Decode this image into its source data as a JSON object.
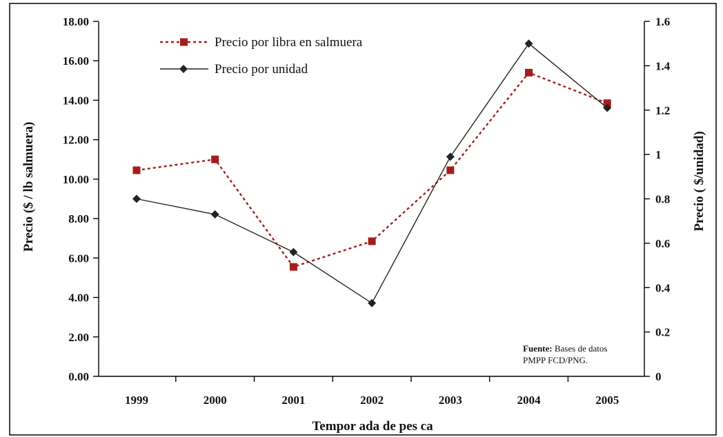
{
  "colors": {
    "series_brine": "#a51d1d",
    "series_unit": "#222222",
    "frame": "#000000"
  },
  "chart_data": {
    "type": "line",
    "categories": [
      "1999",
      "2000",
      "2001",
      "2002",
      "2003",
      "2004",
      "2005"
    ],
    "xlabel": "Tempor ada de pes ca",
    "y_left": {
      "label": "Precio ($ / lb salmuera)",
      "range": [
        0,
        18
      ],
      "ticks": [
        "0.00",
        "2.00",
        "4.00",
        "6.00",
        "8.00",
        "10.00",
        "12.00",
        "14.00",
        "16.00",
        "18.00"
      ]
    },
    "y_right": {
      "label": "Precio ( $/unidad)",
      "range": [
        0,
        1.6
      ],
      "ticks": [
        "0",
        "0.2",
        "0.4",
        "0.6",
        "0.8",
        "1",
        "1.2",
        "1.4",
        "1.6"
      ]
    },
    "series": [
      {
        "name": "Precio por libra en salmuera",
        "axis": "left",
        "style": "dotted",
        "marker": "square",
        "values": [
          10.45,
          11.0,
          5.55,
          6.85,
          10.45,
          15.4,
          13.85
        ]
      },
      {
        "name": "Precio por unidad",
        "axis": "right",
        "style": "solid",
        "marker": "diamond",
        "values": [
          0.8,
          0.73,
          0.56,
          0.33,
          0.99,
          1.5,
          1.21
        ]
      }
    ],
    "legend_position": "top-left",
    "grid": false,
    "annotation": {
      "bold": "Fuente:",
      "line1_rest": " Bases de datos",
      "line2": "PMPP FCD/PNG."
    }
  }
}
